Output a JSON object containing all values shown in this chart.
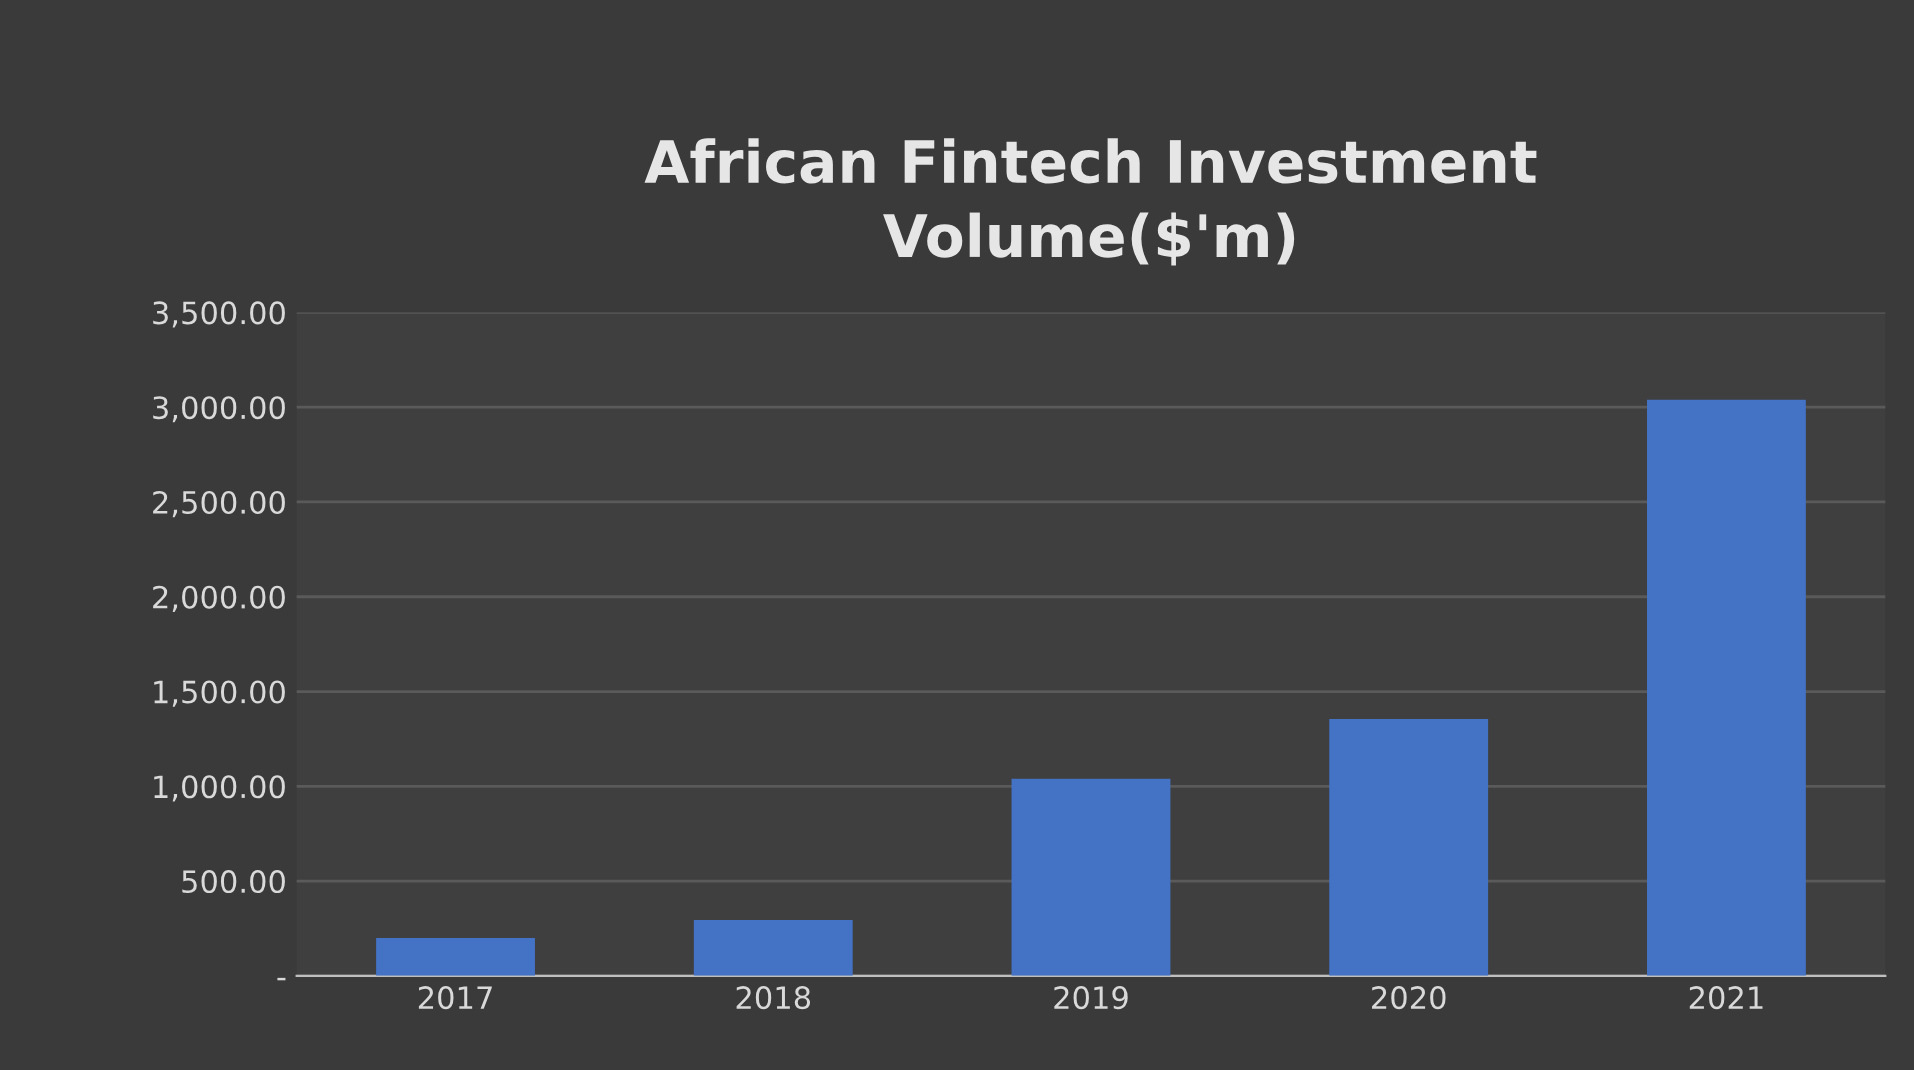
{
  "chart_data": {
    "type": "bar",
    "title": "African Fintech Investment\nVolume($'m)",
    "categories": [
      "2017",
      "2018",
      "2019",
      "2020",
      "2021"
    ],
    "values": [
      200,
      295,
      1040,
      1355,
      3040
    ],
    "color": "#4472c4",
    "ylim": [
      0,
      3500
    ],
    "yticks": [
      {
        "value": 0,
        "label": "-"
      },
      {
        "value": 500,
        "label": "500.00"
      },
      {
        "value": 1000,
        "label": "1,000.00"
      },
      {
        "value": 1500,
        "label": "1,500.00"
      },
      {
        "value": 2000,
        "label": "2,000.00"
      },
      {
        "value": 2500,
        "label": "2,500.00"
      },
      {
        "value": 3000,
        "label": "3,000.00"
      },
      {
        "value": 3500,
        "label": "3,500.00"
      }
    ],
    "grid": "y",
    "legend": false
  }
}
